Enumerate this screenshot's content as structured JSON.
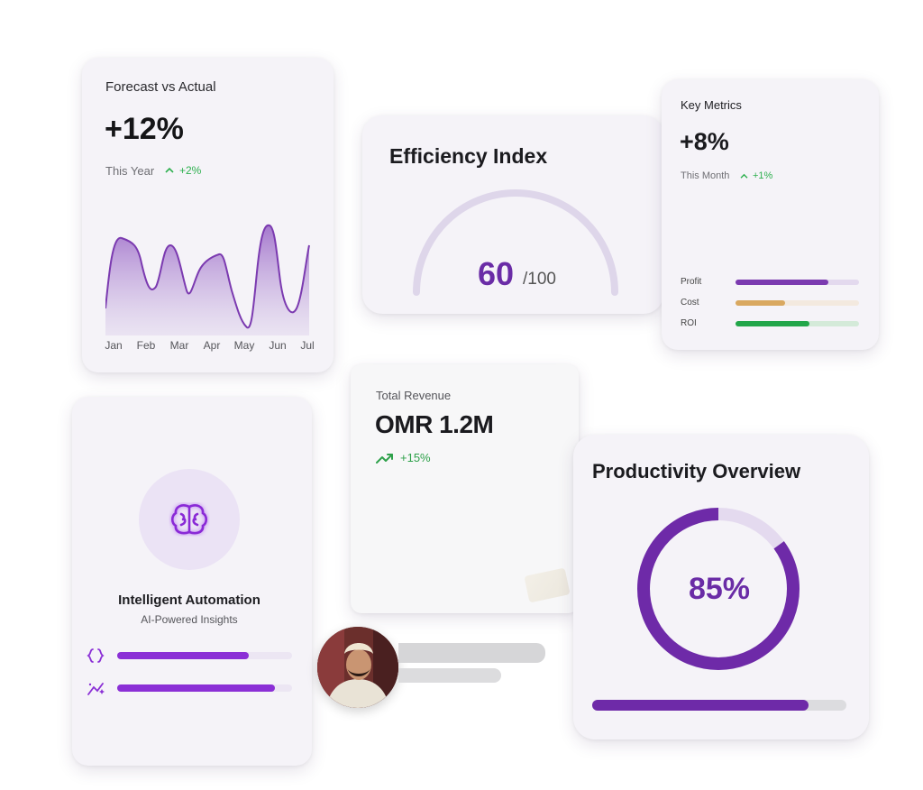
{
  "forecast": {
    "title": "Forecast vs Actual",
    "value": "+12%",
    "period": "This Year",
    "change": "+2%",
    "months": [
      "Jan",
      "Feb",
      "Mar",
      "Apr",
      "May",
      "Jun",
      "Jul"
    ],
    "accent": "#7b3ab0"
  },
  "efficiency": {
    "title": "Efficiency Index",
    "value": "60",
    "max": "/100",
    "fraction": 0.6
  },
  "metrics": {
    "title": "Key Metrics",
    "value": "+8%",
    "period": "This Month",
    "change": "+1%",
    "rows": [
      {
        "label": "Profit",
        "fraction": 0.75,
        "color": "#7b3ab0",
        "track": "#e3d9ee"
      },
      {
        "label": "Cost",
        "fraction": 0.4,
        "color": "#d9a860",
        "track": "#f3e9df"
      },
      {
        "label": "ROI",
        "fraction": 0.6,
        "color": "#22a64a",
        "track": "#d4ead9"
      }
    ]
  },
  "automation": {
    "title": "Intelligent Automation",
    "subtitle": "AI-Powered Insights",
    "icon": "brain-icon",
    "rows": [
      {
        "icon": "code-braces-icon",
        "fraction": 0.75
      },
      {
        "icon": "sparkle-wand-icon",
        "fraction": 0.9
      }
    ]
  },
  "revenue": {
    "title": "Total Revenue",
    "value": "OMR 1.2M",
    "change": "+15%"
  },
  "productivity": {
    "title": "Productivity Overview",
    "value": "85%",
    "fraction": 0.85,
    "bar_fraction": 0.85
  },
  "colors": {
    "purple": "#6e2aa8",
    "green": "#2eb04f"
  }
}
